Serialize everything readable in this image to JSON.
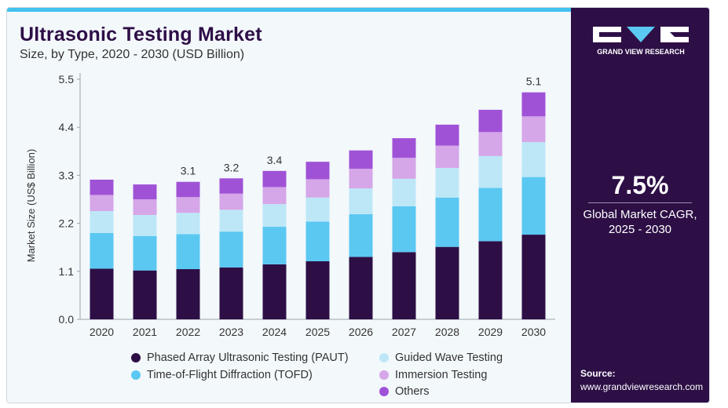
{
  "header": {
    "title": "Ultrasonic Testing Market",
    "subtitle": "Size, by Type, 2020 - 2030 (USD Billion)"
  },
  "brand": {
    "name": "GRAND VIEW RESEARCH"
  },
  "cagr": {
    "value": "7.5%",
    "label_line1": "Global Market CAGR,",
    "label_line2": "2025 - 2030"
  },
  "source": {
    "label": "Source:",
    "url": "www.grandviewresearch.com"
  },
  "colors": {
    "paut": "#2d0f46",
    "tofd": "#5bc8f2",
    "guided": "#bde7f7",
    "immersion": "#d5a6e8",
    "others": "#a052d6",
    "panel": "#2d0f46",
    "accent": "#42c2ee"
  },
  "chart_data": {
    "type": "bar",
    "stacked": true,
    "title": "Ultrasonic Testing Market",
    "subtitle": "Size, by Type, 2020 - 2030 (USD Billion)",
    "xlabel": "",
    "ylabel": "Market Size (US$ Billion)",
    "ylim": [
      0,
      5.5
    ],
    "yticks": [
      "0.0",
      "1.1",
      "2.2",
      "3.3",
      "4.4",
      "5.5"
    ],
    "categories": [
      "2020",
      "2021",
      "2022",
      "2023",
      "2024",
      "2025",
      "2026",
      "2027",
      "2028",
      "2029",
      "2030"
    ],
    "series": [
      {
        "name": "Phased Array Ultrasonic Testing (PAUT)",
        "color": "#2d0f46",
        "values": [
          1.16,
          1.12,
          1.15,
          1.19,
          1.26,
          1.33,
          1.43,
          1.54,
          1.66,
          1.79,
          1.94
        ]
      },
      {
        "name": "Time-of-Flight Diffraction (TOFD)",
        "color": "#5bc8f2",
        "values": [
          0.82,
          0.79,
          0.8,
          0.82,
          0.86,
          0.91,
          0.98,
          1.05,
          1.13,
          1.22,
          1.32
        ]
      },
      {
        "name": "Guided Wave Testing",
        "color": "#bde7f7",
        "values": [
          0.5,
          0.48,
          0.49,
          0.5,
          0.52,
          0.55,
          0.59,
          0.63,
          0.68,
          0.73,
          0.8
        ]
      },
      {
        "name": "Immersion Testing",
        "color": "#d5a6e8",
        "values": [
          0.37,
          0.36,
          0.36,
          0.37,
          0.39,
          0.42,
          0.45,
          0.48,
          0.51,
          0.55,
          0.59
        ]
      },
      {
        "name": "Others",
        "color": "#a052d6",
        "values": [
          0.35,
          0.34,
          0.35,
          0.35,
          0.37,
          0.4,
          0.42,
          0.45,
          0.48,
          0.51,
          0.55
        ]
      }
    ],
    "annotations": [
      {
        "category": "2022",
        "text": "3.1"
      },
      {
        "category": "2023",
        "text": "3.2"
      },
      {
        "category": "2024",
        "text": "3.4"
      },
      {
        "category": "2030",
        "text": "5.1"
      }
    ],
    "legend": {
      "placement": "bottom",
      "entries": [
        "Phased Array Ultrasonic Testing (PAUT)",
        "Guided Wave Testing",
        "Time-of-Flight Diffraction (TOFD)",
        "Immersion Testing",
        "Others"
      ]
    },
    "grid": false
  }
}
